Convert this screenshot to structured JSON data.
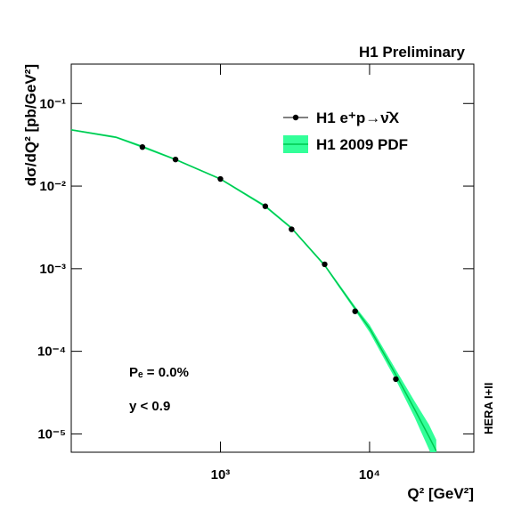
{
  "chart_data": {
    "type": "line",
    "title": "H1 Preliminary",
    "x_label": "Q² [GeV²]",
    "y_label": "dσ/dQ² [pb/GeV²]",
    "annotations": [
      "Pₑ = 0.0%",
      "y < 0.9",
      "HERA I+II"
    ],
    "xlog": true,
    "ylog": true,
    "xlim": [
      100,
      50000
    ],
    "ylim": [
      6e-06,
      0.3
    ],
    "xticks": [
      {
        "value": 1000,
        "label": "10³"
      },
      {
        "value": 10000,
        "label": "10⁴"
      }
    ],
    "yticks": [
      {
        "value": 0.1,
        "label": "10⁻¹"
      },
      {
        "value": 0.01,
        "label": "10⁻²"
      },
      {
        "value": 0.001,
        "label": "10⁻³"
      },
      {
        "value": 0.0001,
        "label": "10⁻⁴"
      },
      {
        "value": 1e-05,
        "label": "10⁻⁵"
      }
    ],
    "legend": "top-right",
    "series": [
      {
        "name": "H1 e⁺p→ν̄X",
        "type": "scatter",
        "color": "#000000",
        "x": [
          300,
          500,
          1000,
          2000,
          3000,
          5000,
          8000,
          15000
        ],
        "values": [
          0.0297,
          0.021,
          0.0122,
          0.0057,
          0.003,
          0.00113,
          0.000305,
          4.6e-05
        ]
      },
      {
        "name": "H1 2009 PDF",
        "type": "band",
        "color": "#00c850",
        "band_color": "#33ff99",
        "x": [
          100,
          200,
          300,
          500,
          1000,
          2000,
          3000,
          5000,
          8000,
          10000,
          15000,
          20000,
          25000,
          28000
        ],
        "values": [
          0.048,
          0.039,
          0.03,
          0.021,
          0.0122,
          0.0057,
          0.0031,
          0.0011,
          0.00033,
          0.00019,
          5.2e-05,
          2e-05,
          9.3e-06,
          6.2e-06
        ],
        "lower": [
          0.047,
          0.038,
          0.029,
          0.0205,
          0.0119,
          0.0055,
          0.003,
          0.00106,
          0.00031,
          0.00017,
          4.5e-05,
          1.6e-05,
          6.5e-06,
          4e-06
        ],
        "upper": [
          0.049,
          0.04,
          0.031,
          0.0215,
          0.0125,
          0.0059,
          0.0032,
          0.00114,
          0.00035,
          0.00021,
          6e-05,
          2.5e-05,
          1.3e-05,
          8.5e-06
        ]
      }
    ]
  }
}
